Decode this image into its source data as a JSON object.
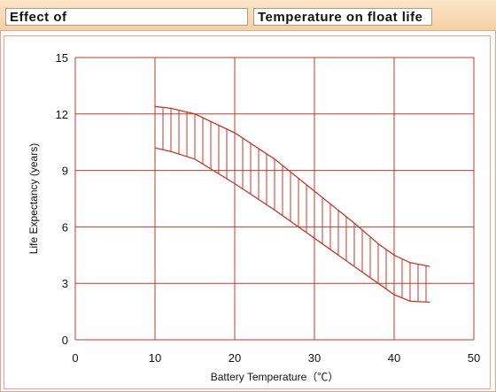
{
  "header": {
    "left_title": "Effect of",
    "right_title": "Temperature on float life"
  },
  "chart_data": {
    "type": "area",
    "xlabel": "Battery Temperature（℃）",
    "ylabel": "Life Expectancy (years)",
    "xlim": [
      0,
      50
    ],
    "ylim": [
      0,
      15
    ],
    "x_ticks": [
      0,
      10,
      20,
      30,
      40,
      50
    ],
    "y_ticks": [
      0,
      3,
      6,
      9,
      12,
      15
    ],
    "grid": true,
    "series": [
      {
        "bound": "upper",
        "points": [
          [
            10,
            12.4
          ],
          [
            12,
            12.3
          ],
          [
            15,
            12.0
          ],
          [
            20,
            11.0
          ],
          [
            25,
            9.6
          ],
          [
            30,
            7.9
          ],
          [
            35,
            6.2
          ],
          [
            38,
            5.1
          ],
          [
            40,
            4.5
          ],
          [
            42,
            4.1
          ],
          [
            44.5,
            3.9
          ]
        ]
      },
      {
        "bound": "lower",
        "points": [
          [
            10,
            10.2
          ],
          [
            12,
            10.0
          ],
          [
            15,
            9.6
          ],
          [
            20,
            8.3
          ],
          [
            25,
            6.9
          ],
          [
            30,
            5.4
          ],
          [
            35,
            3.9
          ],
          [
            38,
            3.0
          ],
          [
            40,
            2.4
          ],
          [
            42,
            2.05
          ],
          [
            44.5,
            2.0
          ]
        ]
      }
    ]
  }
}
